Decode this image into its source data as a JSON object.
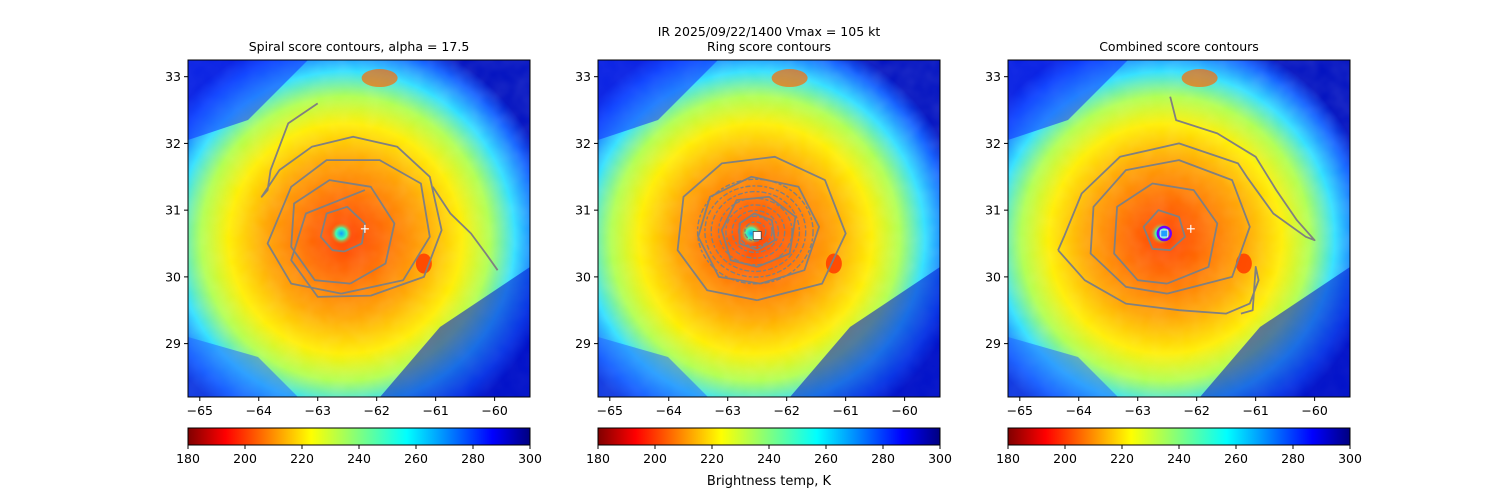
{
  "figure": {
    "suptitle_line1": "IR  2025/09/22/1400    Vmax = 105 kt"
  },
  "chart_data": [
    {
      "type": "heatmap",
      "title": "Spiral score contours, alpha = 17.5",
      "xlim": [
        -65.2,
        -59.4
      ],
      "ylim": [
        28.2,
        33.25
      ],
      "xticks": [
        -65,
        -64,
        -63,
        -62,
        -61,
        -60
      ],
      "yticks": [
        29,
        30,
        31,
        32,
        33
      ],
      "storm_center": [
        -62.6,
        30.65
      ],
      "marker_plus": [
        -62.2,
        30.72
      ],
      "contours": [
        [
          [
            -62.55,
            30.38
          ],
          [
            -62.25,
            30.5
          ],
          [
            -62.2,
            30.8
          ],
          [
            -62.5,
            31.05
          ],
          [
            -62.85,
            30.95
          ],
          [
            -62.95,
            30.6
          ],
          [
            -62.75,
            30.4
          ],
          [
            -62.55,
            30.38
          ]
        ],
        [
          [
            -62.45,
            29.9
          ],
          [
            -61.85,
            30.2
          ],
          [
            -61.7,
            30.8
          ],
          [
            -62.1,
            31.35
          ],
          [
            -62.8,
            31.45
          ],
          [
            -63.4,
            31.1
          ],
          [
            -63.45,
            30.45
          ],
          [
            -63.05,
            29.95
          ],
          [
            -62.45,
            29.9
          ]
        ],
        [
          [
            -62.6,
            29.75
          ],
          [
            -61.55,
            29.95
          ],
          [
            -61.1,
            30.6
          ],
          [
            -61.25,
            31.4
          ],
          [
            -61.95,
            31.75
          ],
          [
            -62.85,
            31.75
          ],
          [
            -63.45,
            31.35
          ],
          [
            -63.85,
            30.5
          ],
          [
            -63.45,
            29.9
          ],
          [
            -62.6,
            29.75
          ]
        ],
        [
          [
            -62.2,
            31.3
          ],
          [
            -63.2,
            30.95
          ],
          [
            -63.45,
            30.25
          ],
          [
            -63,
            29.7
          ],
          [
            -62.1,
            29.72
          ],
          [
            -61.2,
            30.0
          ],
          [
            -60.9,
            30.7
          ],
          [
            -61.1,
            31.5
          ],
          [
            -61.65,
            31.95
          ],
          [
            -62.4,
            32.1
          ],
          [
            -63.1,
            31.95
          ],
          [
            -63.65,
            31.6
          ],
          [
            -63.95,
            31.2
          ],
          [
            -63.85,
            31.3
          ],
          [
            -63.8,
            31.6
          ],
          [
            -63.5,
            32.3
          ],
          [
            -63.0,
            32.6
          ]
        ],
        [
          [
            -61.05,
            31.35
          ],
          [
            -60.75,
            30.95
          ],
          [
            -60.4,
            30.65
          ],
          [
            -60.15,
            30.35
          ],
          [
            -59.95,
            30.1
          ]
        ]
      ]
    },
    {
      "type": "heatmap",
      "title": "Ring score contours",
      "xlim": [
        -65.2,
        -59.4
      ],
      "ylim": [
        28.2,
        33.25
      ],
      "xticks": [
        -65,
        -64,
        -63,
        -62,
        -61,
        -60
      ],
      "yticks": [
        29,
        30,
        31,
        32,
        33
      ],
      "storm_center": [
        -62.6,
        30.65
      ],
      "marker_square": [
        -62.5,
        30.62
      ],
      "contours": [
        [
          [
            -62.5,
            30.4
          ],
          [
            -62.2,
            30.55
          ],
          [
            -62.25,
            30.85
          ],
          [
            -62.55,
            30.95
          ],
          [
            -62.8,
            30.8
          ],
          [
            -62.8,
            30.5
          ],
          [
            -62.5,
            30.4
          ]
        ],
        [
          [
            -62.5,
            30.15
          ],
          [
            -61.95,
            30.35
          ],
          [
            -61.85,
            30.9
          ],
          [
            -62.3,
            31.2
          ],
          [
            -62.85,
            31.15
          ],
          [
            -63.1,
            30.7
          ],
          [
            -62.95,
            30.25
          ],
          [
            -62.5,
            30.15
          ]
        ],
        [
          [
            -62.45,
            29.9
          ],
          [
            -61.7,
            30.1
          ],
          [
            -61.45,
            30.75
          ],
          [
            -61.8,
            31.35
          ],
          [
            -62.6,
            31.5
          ],
          [
            -63.3,
            31.2
          ],
          [
            -63.5,
            30.6
          ],
          [
            -63.15,
            30.0
          ],
          [
            -62.45,
            29.9
          ]
        ],
        [
          [
            -62.5,
            29.65
          ],
          [
            -61.4,
            29.9
          ],
          [
            -61.0,
            30.65
          ],
          [
            -61.35,
            31.45
          ],
          [
            -62.2,
            31.8
          ],
          [
            -63.1,
            31.7
          ],
          [
            -63.75,
            31.2
          ],
          [
            -63.85,
            30.4
          ],
          [
            -63.35,
            29.8
          ],
          [
            -62.5,
            29.65
          ]
        ]
      ]
    },
    {
      "type": "heatmap",
      "title": "Combined score contours",
      "xlim": [
        -65.2,
        -59.4
      ],
      "ylim": [
        28.2,
        33.25
      ],
      "xticks": [
        -65,
        -64,
        -63,
        -62,
        -61,
        -60
      ],
      "yticks": [
        29,
        30,
        31,
        32,
        33
      ],
      "storm_center": [
        -62.6,
        30.65
      ],
      "marker_plus": [
        -62.1,
        30.72
      ],
      "marker_circle": [
        -62.55,
        30.65
      ],
      "contours": [
        [
          [
            -62.45,
            30.4
          ],
          [
            -62.2,
            30.6
          ],
          [
            -62.3,
            30.9
          ],
          [
            -62.65,
            31.0
          ],
          [
            -62.9,
            30.75
          ],
          [
            -62.75,
            30.42
          ],
          [
            -62.45,
            30.4
          ]
        ],
        [
          [
            -62.5,
            29.9
          ],
          [
            -61.8,
            30.15
          ],
          [
            -61.65,
            30.8
          ],
          [
            -62.05,
            31.3
          ],
          [
            -62.75,
            31.4
          ],
          [
            -63.35,
            31.05
          ],
          [
            -63.4,
            30.35
          ],
          [
            -63.0,
            29.95
          ],
          [
            -62.5,
            29.9
          ]
        ],
        [
          [
            -62.5,
            29.75
          ],
          [
            -61.4,
            30.0
          ],
          [
            -61.1,
            30.75
          ],
          [
            -61.4,
            31.45
          ],
          [
            -62.3,
            31.75
          ],
          [
            -63.2,
            31.6
          ],
          [
            -63.75,
            31.05
          ],
          [
            -63.8,
            30.35
          ],
          [
            -63.2,
            29.85
          ],
          [
            -62.5,
            29.75
          ]
        ],
        [
          [
            -62.45,
            32.7
          ],
          [
            -62.35,
            32.35
          ],
          [
            -61.65,
            32.15
          ],
          [
            -61.0,
            31.8
          ],
          [
            -60.65,
            31.3
          ],
          [
            -60.3,
            30.85
          ],
          [
            -60.0,
            30.55
          ],
          [
            -60.15,
            30.6
          ],
          [
            -60.7,
            30.95
          ],
          [
            -61.15,
            31.5
          ],
          [
            -61.3,
            31.7
          ],
          [
            -62.3,
            32.0
          ],
          [
            -63.3,
            31.8
          ],
          [
            -63.95,
            31.25
          ],
          [
            -64.25,
            30.6
          ],
          [
            -64.35,
            30.4
          ]
        ],
        [
          [
            -64.35,
            30.4
          ],
          [
            -63.9,
            29.95
          ],
          [
            -63.2,
            29.6
          ],
          [
            -62.3,
            29.5
          ],
          [
            -61.5,
            29.45
          ],
          [
            -61.1,
            29.6
          ],
          [
            -60.95,
            29.95
          ],
          [
            -61.0,
            30.15
          ],
          [
            -61.05,
            29.5
          ],
          [
            -61.25,
            29.45
          ]
        ]
      ]
    }
  ],
  "colorbar": {
    "vmin": 180,
    "vmax": 300,
    "ticks": [
      "180",
      "200",
      "220",
      "240",
      "260",
      "280",
      "300"
    ],
    "label": "Brightness temp, K"
  }
}
